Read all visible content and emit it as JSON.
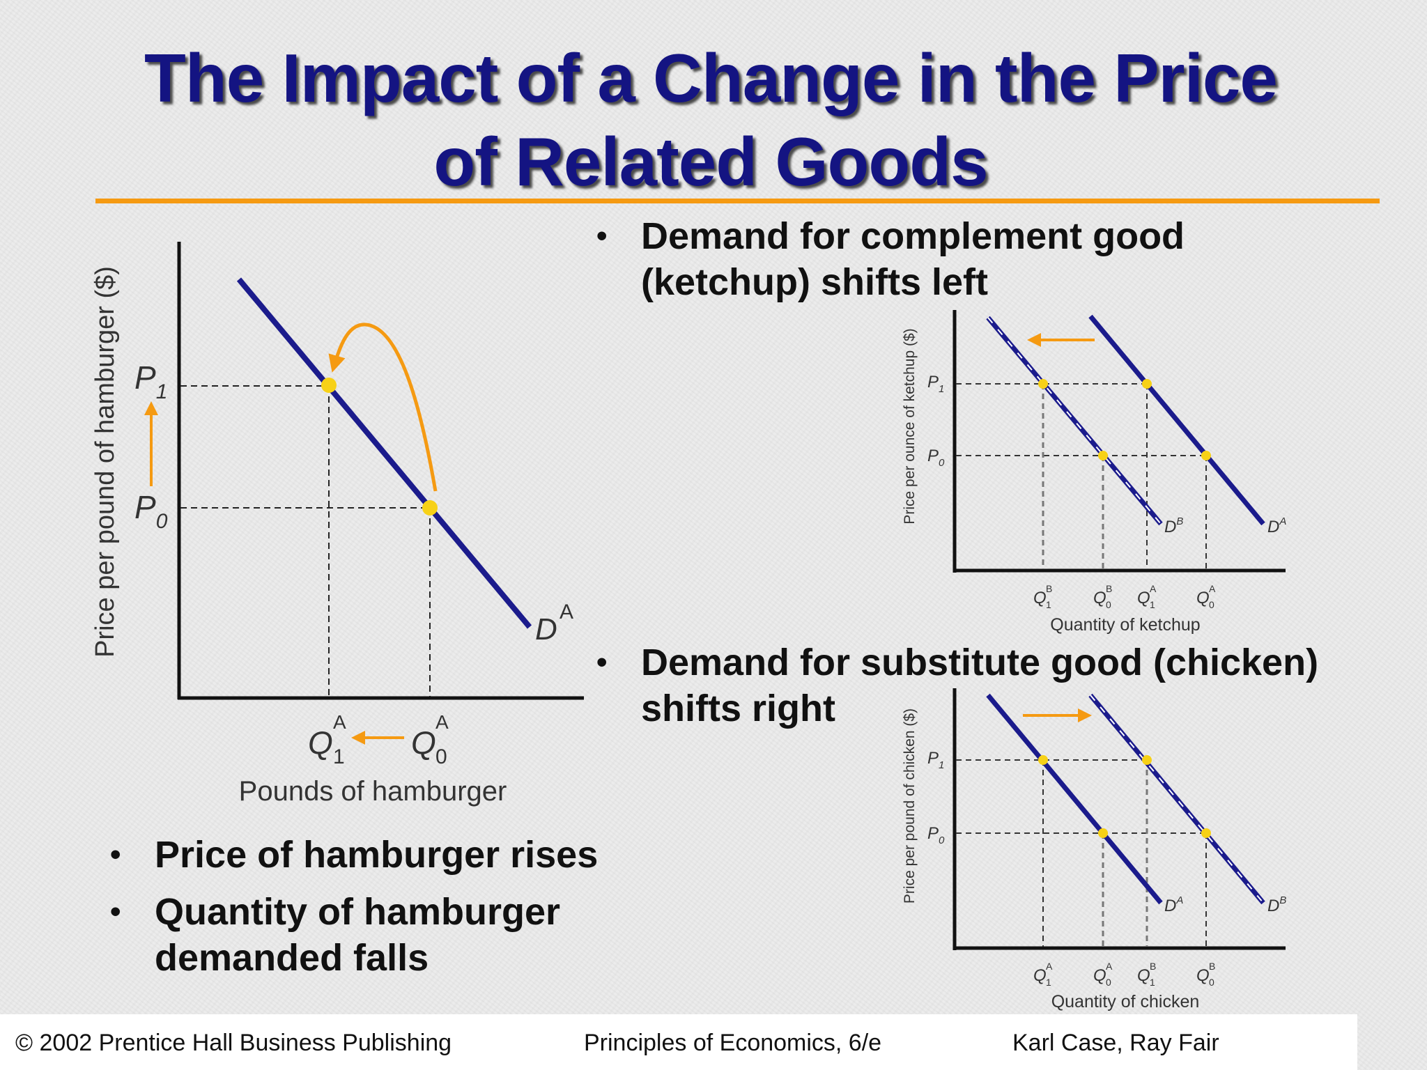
{
  "slide": {
    "title_line1": "The Impact of a Change in the Price",
    "title_line2": "of Related Goods"
  },
  "colors": {
    "title": "#141482",
    "curve": "#1b1b8c",
    "accent": "#f59a12",
    "point": "#f7d117",
    "rule": "#f59a12"
  },
  "hamburger_graph": {
    "y_axis_label": "Price per pound of hamburger ($)",
    "x_axis_label": "Pounds of hamburger",
    "p1": "P",
    "p1_sub": "1",
    "p0": "P",
    "p0_sub": "0",
    "q1": "Q",
    "q1_sub": "1",
    "q1_sup": "A",
    "q0": "Q",
    "q0_sub": "0",
    "q0_sup": "A",
    "curve_label": "D",
    "curve_sup": "A"
  },
  "ketchup_graph": {
    "y_axis_label": "Price per ounce of ketchup ($)",
    "x_axis_label": "Quantity of ketchup",
    "p1": "P",
    "p1_sub": "1",
    "p0": "P",
    "p0_sub": "0",
    "x_ticks": [
      {
        "base": "Q",
        "sup": "B",
        "sub": "1"
      },
      {
        "base": "Q",
        "sup": "B",
        "sub": "0"
      },
      {
        "base": "Q",
        "sup": "A",
        "sub": "1"
      },
      {
        "base": "Q",
        "sup": "A",
        "sub": "0"
      }
    ],
    "curve_b": "D",
    "curve_b_sup": "B",
    "curve_a": "D",
    "curve_a_sup": "A"
  },
  "chicken_graph": {
    "y_axis_label": "Price per pound of chicken ($)",
    "x_axis_label": "Quantity of chicken",
    "p1": "P",
    "p1_sub": "1",
    "p0": "P",
    "p0_sub": "0",
    "x_ticks": [
      {
        "base": "Q",
        "sup": "A",
        "sub": "1"
      },
      {
        "base": "Q",
        "sup": "A",
        "sub": "0"
      },
      {
        "base": "Q",
        "sup": "B",
        "sub": "1"
      },
      {
        "base": "Q",
        "sup": "B",
        "sub": "0"
      }
    ],
    "curve_a": "D",
    "curve_a_sup": "A",
    "curve_b": "D",
    "curve_b_sup": "B"
  },
  "bullets": {
    "complement_line1": "Demand for complement good",
    "complement_line2": "(ketchup) shifts left",
    "substitute_line1": "Demand for substitute good (chicken)",
    "substitute_line2": "shifts right",
    "left": [
      {
        "text": "Price of hamburger rises"
      },
      {
        "text": "Quantity of hamburger demanded falls"
      }
    ],
    "marker": "•"
  },
  "footer": {
    "copyright": "© 2002 Prentice Hall Business Publishing",
    "book": "Principles of Economics, 6/e",
    "authors": "Karl Case, Ray Fair"
  }
}
